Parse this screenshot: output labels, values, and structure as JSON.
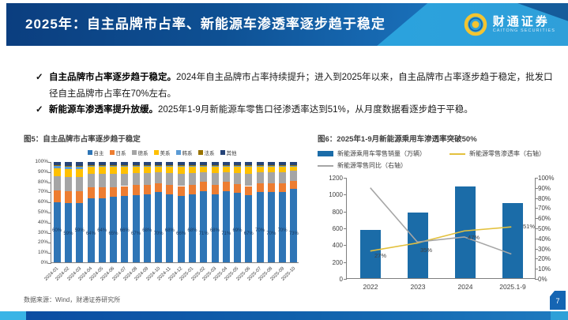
{
  "header": {
    "title": "2025年：自主品牌市占率、新能源车渗透率逐步趋于稳定",
    "logo_text": "财通证券",
    "logo_subtext": "CAITONG SECURITIES"
  },
  "bullet_mark": "✓",
  "bullets": [
    {
      "lead": "自主品牌市占率逐步趋于稳定。",
      "text": "2024年自主品牌市占率持续提升；进入到2025年以来，自主品牌市占率逐步趋于稳定，批发口径自主品牌市占率在70%左右。"
    },
    {
      "lead": "新能源车渗透率提升放缓。",
      "text": "2025年1-9月新能源车零售口径渗透率达到51%，从月度数据看逐步趋于平稳。"
    }
  ],
  "footer": {
    "source": "数据来源：Wind，财通证券研究所",
    "page_number": "7"
  },
  "colors": {
    "header_blue": "#0e5093",
    "accent_light_blue": "#2ba2dd",
    "logo_gold": "#f3c431",
    "page_tab_blue": "#1565b3"
  },
  "chart_data": [
    {
      "type": "bar",
      "stacked": true,
      "percent": true,
      "title": "图5：自主品牌市占率逐步趋于稳定",
      "categories": [
        "2024-01",
        "2024-02",
        "2024-03",
        "2024-04",
        "2024-05",
        "2024-06",
        "2024-07",
        "2024-08",
        "2024-09",
        "2024-10",
        "2024-11",
        "2024-12",
        "2025-01",
        "2025-02",
        "2025-03",
        "2025-04",
        "2025-05",
        "2025-06",
        "2025-07",
        "2025-08",
        "2025-09",
        "2025-10"
      ],
      "series": [
        {
          "name": "自主",
          "color": "#2e75b6",
          "values": [
            60,
            59,
            59,
            64,
            64,
            65,
            66,
            67,
            68,
            70,
            68,
            66,
            68,
            71,
            68,
            71,
            69,
            67,
            70,
            70,
            70,
            73
          ]
        },
        {
          "name": "日系",
          "color": "#ed7d31",
          "values": [
            12,
            12,
            12,
            11,
            11,
            10,
            10,
            10,
            9,
            9,
            9,
            10,
            9,
            9,
            9,
            9,
            9,
            9,
            9,
            9,
            9,
            8
          ]
        },
        {
          "name": "德系",
          "color": "#a5a5a5",
          "values": [
            14,
            14,
            14,
            13,
            13,
            13,
            12,
            12,
            12,
            11,
            12,
            12,
            12,
            10,
            12,
            10,
            11,
            12,
            11,
            11,
            11,
            10
          ]
        },
        {
          "name": "美系",
          "color": "#ffc000",
          "values": [
            8,
            8,
            8,
            7,
            7,
            7,
            7,
            6,
            6,
            5,
            6,
            7,
            6,
            5,
            6,
            5,
            6,
            7,
            5,
            5,
            5,
            4
          ]
        },
        {
          "name": "韩系",
          "color": "#5b9bd5",
          "values": [
            2,
            2,
            2,
            1,
            1,
            1,
            1,
            1,
            1,
            1,
            1,
            1,
            1,
            1,
            1,
            1,
            1,
            1,
            1,
            1,
            1,
            1
          ]
        },
        {
          "name": "法系",
          "color": "#997300",
          "values": [
            1,
            1,
            1,
            1,
            1,
            1,
            1,
            1,
            1,
            1,
            1,
            1,
            1,
            1,
            1,
            1,
            1,
            1,
            1,
            1,
            1,
            1
          ]
        },
        {
          "name": "其他",
          "color": "#264478",
          "values": [
            3,
            4,
            4,
            3,
            3,
            3,
            3,
            3,
            3,
            3,
            3,
            3,
            3,
            3,
            3,
            3,
            3,
            3,
            3,
            3,
            3,
            3
          ]
        }
      ],
      "data_label_series": "自主",
      "ylim": [
        0,
        100
      ],
      "ytick_step": 10,
      "legend_position": "top",
      "grid": false
    },
    {
      "type": "combo",
      "title": "图6：2025年1-9月新能源乘用车渗透率突破50%",
      "categories": [
        "2022",
        "2023",
        "2024",
        "2025.1-9"
      ],
      "bar_series": {
        "name": "新能源乘用车零售销量（万辆）",
        "color": "#1b6ca8",
        "axis": "left",
        "values": [
          570,
          775,
          1090,
          890
        ]
      },
      "line_series": [
        {
          "name": "新能源零售渗透率（右轴）",
          "color": "#e3c13e",
          "axis": "right",
          "values": [
            27,
            35,
            47,
            51
          ],
          "labels": [
            "27%",
            "35%",
            "47%",
            "51%"
          ]
        },
        {
          "name": "新能源零售同比（右轴）",
          "color": "#a6a6a6",
          "axis": "right",
          "values": [
            90,
            36,
            41,
            24
          ],
          "labels": []
        }
      ],
      "left_axis": {
        "min": 0,
        "max": 1200,
        "step": 200
      },
      "right_axis": {
        "min": 0,
        "max": 100,
        "step": 10,
        "format": "percent"
      },
      "legend_position": "top",
      "grid": false
    }
  ]
}
